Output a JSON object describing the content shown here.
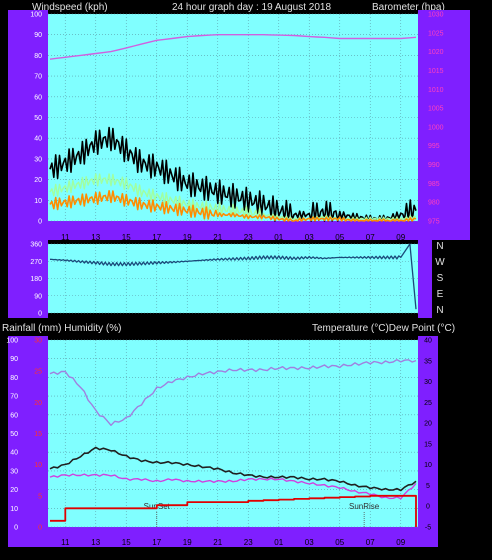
{
  "header": {
    "windspeed_label": "Windspeed (kph)",
    "title": "24 hour graph day : 19 August 2018",
    "barometer_label": "Barometer (hpa)"
  },
  "lower_header": {
    "rain_humidity_label": "Rainfall (mm)  Humidity (%)",
    "temp_label": "Temperature (°C)Dew Point (°C)"
  },
  "colors": {
    "frame": "#000000",
    "axis_band": "#7f1fff",
    "plot_bg": "#80ffff",
    "grid": "#5a9aa8",
    "wind_avg": "#ff8c00",
    "wind_gust": "#000000",
    "wind_aux": "#a0ffa0",
    "barometer": "#d060e0",
    "direction": "#1a4a7a",
    "humidity": "#a080e0",
    "temperature": "#202020",
    "dewpoint": "#d040e0",
    "rainfall": "#e00000",
    "left_ticks": "#ffffff",
    "baro_ticks": "#ff40c0",
    "rain_ticks": "#ff3030",
    "sun_marker": "#505050"
  },
  "chart_data": [
    {
      "type": "line",
      "panel": "wind-barometer",
      "x_tick_labels": [
        "11",
        "13",
        "15",
        "17",
        "19",
        "21",
        "23",
        "01",
        "03",
        "05",
        "07",
        "09"
      ],
      "left_axis": {
        "ylim": [
          0,
          100
        ],
        "ticks": [
          0,
          10,
          20,
          30,
          40,
          50,
          60,
          70,
          80,
          90,
          100
        ]
      },
      "right_axis": {
        "ylim": [
          975,
          1030
        ],
        "ticks": [
          975,
          980,
          985,
          990,
          995,
          1000,
          1005,
          1010,
          1015,
          1020,
          1025,
          1030
        ]
      },
      "hours": [
        0,
        1,
        2,
        3,
        4,
        5,
        6,
        7,
        8,
        9,
        10,
        11,
        12,
        13,
        14,
        15,
        16,
        17,
        18,
        19,
        20,
        21,
        22,
        23,
        24
      ],
      "series": [
        {
          "key": "gust",
          "axis": "left",
          "values": [
            25,
            28,
            32,
            38,
            40,
            34,
            28,
            26,
            22,
            18,
            16,
            14,
            12,
            10,
            8,
            5,
            3,
            3,
            4,
            3,
            2,
            1,
            1,
            3,
            5
          ]
        },
        {
          "key": "aux",
          "axis": "left",
          "values": [
            14,
            16,
            18,
            20,
            20,
            18,
            14,
            12,
            10,
            8,
            7,
            6,
            5,
            4,
            3,
            2,
            1,
            1,
            2,
            1,
            1,
            1,
            1,
            1,
            2
          ]
        },
        {
          "key": "avg",
          "axis": "left",
          "values": [
            8,
            9,
            10,
            11,
            12,
            10,
            8,
            7,
            6,
            5,
            4,
            3,
            3,
            2,
            2,
            1,
            0,
            1,
            1,
            1,
            0,
            0,
            0,
            0,
            1
          ]
        },
        {
          "key": "baro",
          "axis": "right",
          "values": [
            1018,
            1018.5,
            1019,
            1019.5,
            1020,
            1021,
            1022,
            1023,
            1023.5,
            1024,
            1024.3,
            1024.5,
            1024.5,
            1024.5,
            1024.5,
            1024.4,
            1024.3,
            1024,
            1023.8,
            1023.5,
            1023.5,
            1023.5,
            1023.5,
            1023.5,
            1023.8
          ]
        }
      ]
    },
    {
      "type": "line",
      "panel": "wind-direction",
      "y_tick_labels": [
        "360",
        "270",
        "180",
        "90",
        "0"
      ],
      "right_labels": [
        "N",
        "W",
        "S",
        "E",
        "N"
      ],
      "ylim": [
        0,
        360
      ],
      "hours": [
        0,
        1,
        2,
        3,
        4,
        5,
        6,
        7,
        8,
        9,
        10,
        11,
        12,
        13,
        14,
        15,
        16,
        17,
        18,
        19,
        20,
        21,
        22,
        23,
        23.6,
        24
      ],
      "series": [
        {
          "key": "direction",
          "values": [
            280,
            275,
            268,
            262,
            255,
            255,
            258,
            262,
            265,
            270,
            275,
            280,
            282,
            285,
            290,
            290,
            285,
            290,
            285,
            290,
            290,
            290,
            290,
            290,
            360,
            20
          ]
        }
      ]
    },
    {
      "type": "line",
      "panel": "rain-humidity-temperature",
      "x_tick_labels": [
        "11",
        "13",
        "15",
        "17",
        "19",
        "21",
        "23",
        "01",
        "03",
        "05",
        "07",
        "09"
      ],
      "left_ticks": [
        "0",
        "10",
        "20",
        "30",
        "40",
        "50",
        "60",
        "70",
        "80",
        "90",
        "100"
      ],
      "rain_ticks": [
        "0",
        "5",
        "10",
        "15",
        "20",
        "25",
        "30"
      ],
      "temp_ticks": [
        "-5",
        "0",
        "5",
        "10",
        "15",
        "20",
        "25",
        "30",
        "35",
        "40"
      ],
      "hum_ylim": [
        0,
        100
      ],
      "rain_ylim": [
        0,
        30
      ],
      "temp_ylim": [
        -5,
        40
      ],
      "hours": [
        0,
        1,
        2,
        3,
        4,
        5,
        6,
        7,
        8,
        9,
        10,
        11,
        12,
        13,
        14,
        15,
        16,
        17,
        18,
        19,
        20,
        21,
        22,
        23,
        24
      ],
      "series": [
        {
          "key": "humidity",
          "axis": "humidity",
          "values": [
            82,
            83,
            75,
            62,
            55,
            58,
            66,
            74,
            78,
            80,
            82,
            83,
            84,
            84,
            84,
            85,
            85,
            85,
            86,
            86,
            87,
            88,
            88,
            89,
            89
          ]
        },
        {
          "key": "temperature",
          "axis": "temp",
          "values": [
            9,
            10,
            12,
            14,
            13.5,
            12,
            11,
            10.5,
            10.5,
            10,
            9.5,
            9,
            8,
            7.5,
            7,
            7,
            7,
            6.5,
            6.5,
            6,
            5,
            4.5,
            4,
            4,
            6
          ]
        },
        {
          "key": "dewpoint",
          "axis": "temp",
          "values": [
            7,
            7.5,
            7.5,
            7.5,
            7.5,
            6.5,
            6.5,
            6,
            6.5,
            6,
            6,
            6,
            6,
            6.5,
            6.5,
            6.5,
            6,
            5.5,
            5,
            4.5,
            3.5,
            3,
            2,
            2,
            5.5
          ]
        },
        {
          "key": "rainfall",
          "axis": "rain",
          "values": [
            1,
            3,
            3,
            3,
            3,
            3,
            3,
            3.5,
            3.5,
            4,
            4,
            4,
            4,
            4.2,
            4.3,
            4.4,
            4.5,
            4.6,
            4.7,
            4.8,
            4.9,
            5,
            5,
            5,
            0
          ]
        }
      ],
      "markers": [
        {
          "label": "SunSet",
          "hour": 7
        },
        {
          "label": "SunRise",
          "hour": 20.6
        }
      ]
    }
  ]
}
